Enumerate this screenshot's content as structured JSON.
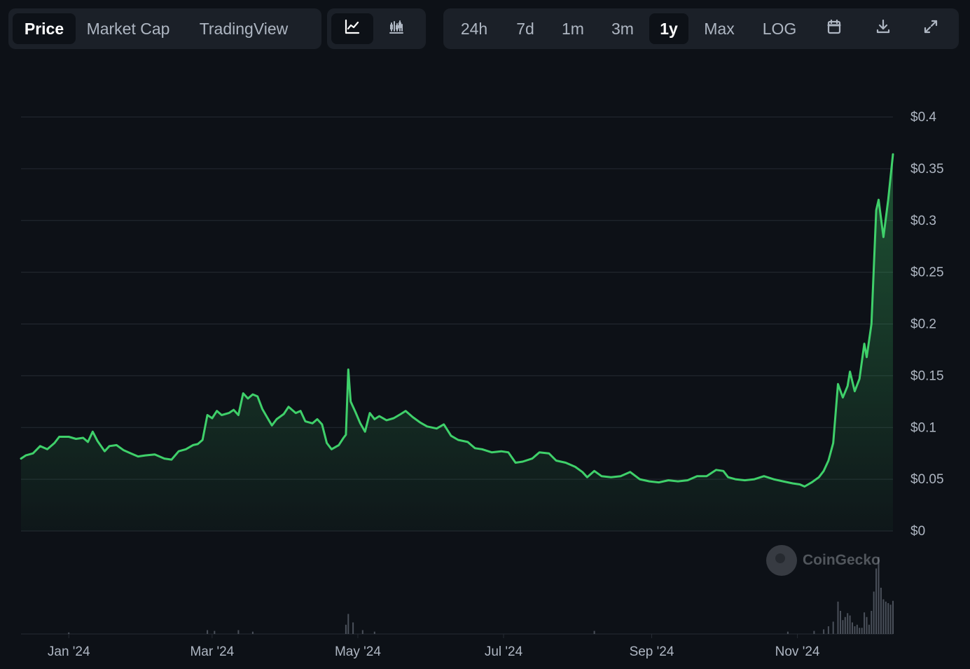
{
  "toolbar": {
    "views": [
      "Price",
      "Market Cap",
      "TradingView"
    ],
    "active_view": "Price",
    "chart_types": [
      {
        "name": "line-chart-icon",
        "active": true
      },
      {
        "name": "candlestick-chart-icon",
        "active": false
      }
    ],
    "ranges": [
      "24h",
      "7d",
      "1m",
      "3m",
      "1y",
      "Max",
      "LOG"
    ],
    "active_range": "1y",
    "actions": [
      "calendar-icon",
      "download-icon",
      "fullscreen-icon"
    ]
  },
  "watermark": "CoinGecko",
  "colors": {
    "background": "#0d1117",
    "line": "#3fd06a",
    "volume": "#4a505a",
    "grid": "#252b33",
    "axis_text": "#aeb6c2"
  },
  "chart_data": {
    "type": "area",
    "y_ticks": [
      "$0.4",
      "$0.35",
      "$0.3",
      "$0.25",
      "$0.2",
      "$0.15",
      "$0.1",
      "$0.05",
      "$0"
    ],
    "y_tick_values": [
      0.4,
      0.35,
      0.3,
      0.25,
      0.2,
      0.15,
      0.1,
      0.05,
      0
    ],
    "ylim": [
      0,
      0.4
    ],
    "x_ticks": [
      {
        "label": "Jan '24",
        "date": "2024-01-01"
      },
      {
        "label": "Mar '24",
        "date": "2024-03-01"
      },
      {
        "label": "May '24",
        "date": "2024-05-01"
      },
      {
        "label": "Jul '24",
        "date": "2024-07-01"
      },
      {
        "label": "Sep '24",
        "date": "2024-09-01"
      },
      {
        "label": "Nov '24",
        "date": "2024-11-01"
      }
    ],
    "xlim": [
      "2023-12-12",
      "2024-12-11"
    ],
    "grid": true,
    "series": [
      {
        "points": [
          [
            "2023-12-12",
            0.07
          ],
          [
            "2023-12-14",
            0.073
          ],
          [
            "2023-12-17",
            0.075
          ],
          [
            "2023-12-20",
            0.082
          ],
          [
            "2023-12-23",
            0.079
          ],
          [
            "2023-12-26",
            0.085
          ],
          [
            "2023-12-28",
            0.091
          ],
          [
            "2024-01-01",
            0.091
          ],
          [
            "2024-01-04",
            0.089
          ],
          [
            "2024-01-07",
            0.09
          ],
          [
            "2024-01-09",
            0.086
          ],
          [
            "2024-01-11",
            0.096
          ],
          [
            "2024-01-13",
            0.087
          ],
          [
            "2024-01-16",
            0.077
          ],
          [
            "2024-01-18",
            0.082
          ],
          [
            "2024-01-21",
            0.083
          ],
          [
            "2024-01-24",
            0.078
          ],
          [
            "2024-01-27",
            0.075
          ],
          [
            "2024-01-30",
            0.072
          ],
          [
            "2024-02-02",
            0.073
          ],
          [
            "2024-02-06",
            0.074
          ],
          [
            "2024-02-10",
            0.07
          ],
          [
            "2024-02-13",
            0.069
          ],
          [
            "2024-02-16",
            0.077
          ],
          [
            "2024-02-19",
            0.079
          ],
          [
            "2024-02-22",
            0.083
          ],
          [
            "2024-02-24",
            0.084
          ],
          [
            "2024-02-26",
            0.088
          ],
          [
            "2024-02-28",
            0.112
          ],
          [
            "2024-03-01",
            0.109
          ],
          [
            "2024-03-03",
            0.116
          ],
          [
            "2024-03-05",
            0.112
          ],
          [
            "2024-03-08",
            0.114
          ],
          [
            "2024-03-10",
            0.117
          ],
          [
            "2024-03-12",
            0.112
          ],
          [
            "2024-03-14",
            0.133
          ],
          [
            "2024-03-16",
            0.128
          ],
          [
            "2024-03-18",
            0.132
          ],
          [
            "2024-03-20",
            0.13
          ],
          [
            "2024-03-22",
            0.118
          ],
          [
            "2024-03-24",
            0.11
          ],
          [
            "2024-03-26",
            0.102
          ],
          [
            "2024-03-28",
            0.108
          ],
          [
            "2024-03-31",
            0.113
          ],
          [
            "2024-04-02",
            0.12
          ],
          [
            "2024-04-05",
            0.114
          ],
          [
            "2024-04-07",
            0.116
          ],
          [
            "2024-04-09",
            0.106
          ],
          [
            "2024-04-12",
            0.104
          ],
          [
            "2024-04-14",
            0.108
          ],
          [
            "2024-04-16",
            0.103
          ],
          [
            "2024-04-18",
            0.085
          ],
          [
            "2024-04-20",
            0.079
          ],
          [
            "2024-04-23",
            0.083
          ],
          [
            "2024-04-25",
            0.09
          ],
          [
            "2024-04-26",
            0.093
          ],
          [
            "2024-04-27",
            0.156
          ],
          [
            "2024-04-28",
            0.125
          ],
          [
            "2024-04-30",
            0.115
          ],
          [
            "2024-05-02",
            0.104
          ],
          [
            "2024-05-04",
            0.096
          ],
          [
            "2024-05-06",
            0.114
          ],
          [
            "2024-05-08",
            0.108
          ],
          [
            "2024-05-10",
            0.111
          ],
          [
            "2024-05-13",
            0.107
          ],
          [
            "2024-05-16",
            0.109
          ],
          [
            "2024-05-19",
            0.113
          ],
          [
            "2024-05-21",
            0.116
          ],
          [
            "2024-05-24",
            0.11
          ],
          [
            "2024-05-27",
            0.105
          ],
          [
            "2024-05-30",
            0.101
          ],
          [
            "2024-06-03",
            0.099
          ],
          [
            "2024-06-06",
            0.103
          ],
          [
            "2024-06-09",
            0.092
          ],
          [
            "2024-06-12",
            0.088
          ],
          [
            "2024-06-16",
            0.086
          ],
          [
            "2024-06-19",
            0.08
          ],
          [
            "2024-06-22",
            0.079
          ],
          [
            "2024-06-26",
            0.076
          ],
          [
            "2024-06-30",
            0.077
          ],
          [
            "2024-07-03",
            0.076
          ],
          [
            "2024-07-06",
            0.066
          ],
          [
            "2024-07-09",
            0.067
          ],
          [
            "2024-07-13",
            0.07
          ],
          [
            "2024-07-16",
            0.076
          ],
          [
            "2024-07-20",
            0.075
          ],
          [
            "2024-07-23",
            0.068
          ],
          [
            "2024-07-27",
            0.066
          ],
          [
            "2024-07-31",
            0.062
          ],
          [
            "2024-08-03",
            0.057
          ],
          [
            "2024-08-05",
            0.052
          ],
          [
            "2024-08-08",
            0.058
          ],
          [
            "2024-08-11",
            0.053
          ],
          [
            "2024-08-15",
            0.052
          ],
          [
            "2024-08-19",
            0.053
          ],
          [
            "2024-08-23",
            0.057
          ],
          [
            "2024-08-27",
            0.05
          ],
          [
            "2024-08-31",
            0.048
          ],
          [
            "2024-09-04",
            0.047
          ],
          [
            "2024-09-08",
            0.049
          ],
          [
            "2024-09-12",
            0.048
          ],
          [
            "2024-09-16",
            0.049
          ],
          [
            "2024-09-20",
            0.053
          ],
          [
            "2024-09-24",
            0.053
          ],
          [
            "2024-09-28",
            0.059
          ],
          [
            "2024-10-01",
            0.058
          ],
          [
            "2024-10-03",
            0.052
          ],
          [
            "2024-10-06",
            0.05
          ],
          [
            "2024-10-10",
            0.049
          ],
          [
            "2024-10-14",
            0.05
          ],
          [
            "2024-10-18",
            0.053
          ],
          [
            "2024-10-22",
            0.05
          ],
          [
            "2024-10-26",
            0.048
          ],
          [
            "2024-10-30",
            0.046
          ],
          [
            "2024-11-02",
            0.045
          ],
          [
            "2024-11-04",
            0.043
          ],
          [
            "2024-11-07",
            0.047
          ],
          [
            "2024-11-10",
            0.052
          ],
          [
            "2024-11-12",
            0.058
          ],
          [
            "2024-11-14",
            0.068
          ],
          [
            "2024-11-16",
            0.085
          ],
          [
            "2024-11-18",
            0.142
          ],
          [
            "2024-11-20",
            0.129
          ],
          [
            "2024-11-22",
            0.14
          ],
          [
            "2024-11-23",
            0.154
          ],
          [
            "2024-11-25",
            0.135
          ],
          [
            "2024-11-27",
            0.147
          ],
          [
            "2024-11-29",
            0.181
          ],
          [
            "2024-11-30",
            0.168
          ],
          [
            "2024-12-02",
            0.2
          ],
          [
            "2024-12-04",
            0.31
          ],
          [
            "2024-12-05",
            0.32
          ],
          [
            "2024-12-07",
            0.284
          ],
          [
            "2024-12-09",
            0.32
          ],
          [
            "2024-12-11",
            0.364
          ]
        ]
      }
    ],
    "volume": {
      "points": [
        [
          "2024-01-01",
          0.02
        ],
        [
          "2024-02-28",
          0.05
        ],
        [
          "2024-03-02",
          0.04
        ],
        [
          "2024-03-12",
          0.05
        ],
        [
          "2024-03-18",
          0.03
        ],
        [
          "2024-04-26",
          0.12
        ],
        [
          "2024-04-27",
          0.26
        ],
        [
          "2024-04-29",
          0.15
        ],
        [
          "2024-05-03",
          0.05
        ],
        [
          "2024-05-08",
          0.03
        ],
        [
          "2024-08-08",
          0.04
        ],
        [
          "2024-10-28",
          0.03
        ],
        [
          "2024-11-08",
          0.04
        ],
        [
          "2024-11-12",
          0.06
        ],
        [
          "2024-11-14",
          0.1
        ],
        [
          "2024-11-16",
          0.16
        ],
        [
          "2024-11-18",
          0.42
        ],
        [
          "2024-11-19",
          0.3
        ],
        [
          "2024-11-20",
          0.18
        ],
        [
          "2024-11-21",
          0.22
        ],
        [
          "2024-11-22",
          0.27
        ],
        [
          "2024-11-23",
          0.24
        ],
        [
          "2024-11-24",
          0.15
        ],
        [
          "2024-11-25",
          0.1
        ],
        [
          "2024-11-26",
          0.12
        ],
        [
          "2024-11-27",
          0.08
        ],
        [
          "2024-11-28",
          0.08
        ],
        [
          "2024-11-29",
          0.28
        ],
        [
          "2024-11-30",
          0.22
        ],
        [
          "2024-12-01",
          0.12
        ],
        [
          "2024-12-02",
          0.3
        ],
        [
          "2024-12-03",
          0.55
        ],
        [
          "2024-12-04",
          0.85
        ],
        [
          "2024-12-05",
          1.0
        ],
        [
          "2024-12-06",
          0.6
        ],
        [
          "2024-12-07",
          0.45
        ],
        [
          "2024-12-08",
          0.42
        ],
        [
          "2024-12-09",
          0.4
        ],
        [
          "2024-12-10",
          0.38
        ],
        [
          "2024-12-11",
          0.43
        ]
      ]
    }
  }
}
